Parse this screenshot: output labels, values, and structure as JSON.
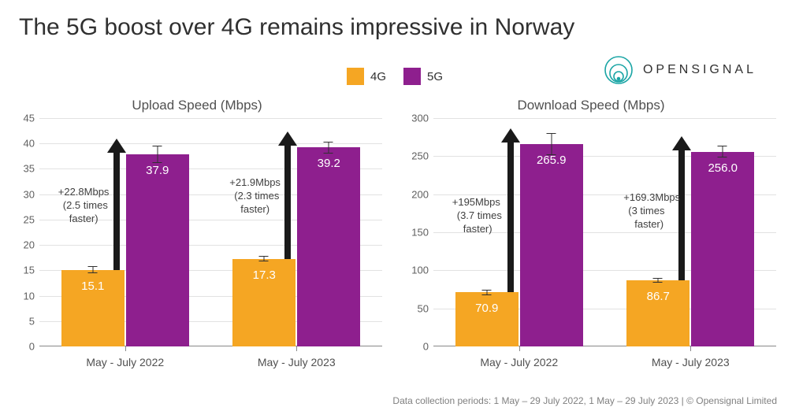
{
  "title": "The 5G boost over 4G remains impressive in Norway",
  "brand": "OPENSIGNAL",
  "footer": "Data collection periods: 1 May – 29 July 2022, 1 May – 29 July 2023 | © Opensignal Limited",
  "legend": {
    "items": [
      {
        "label": "4G",
        "color": "#f5a623"
      },
      {
        "label": "5G",
        "color": "#8e1f8e"
      }
    ]
  },
  "styling": {
    "background_color": "#ffffff",
    "grid_color": "#e2e2e2",
    "axis_color": "#888888",
    "tick_font_size": 13,
    "title_font_size": 30,
    "panel_title_font_size": 17,
    "bar_label_color": "#ffffff",
    "arrow_color": "#1a1a1a",
    "brand_icon_color": "#1aa5a5"
  },
  "charts": [
    {
      "type": "bar",
      "title": "Upload Speed (Mbps)",
      "ylim": [
        0,
        45
      ],
      "ytick_step": 5,
      "groups": [
        {
          "label": "May - July 2022",
          "bars": [
            {
              "series": "4G",
              "value": 15.1,
              "err": 0.7,
              "color": "#f5a623"
            },
            {
              "series": "5G",
              "value": 37.9,
              "err": 1.7,
              "color": "#8e1f8e"
            }
          ],
          "annotation": {
            "line1": "+22.8Mbps",
            "line2": "(2.5 times",
            "line3": "faster)"
          }
        },
        {
          "label": "May - July 2023",
          "bars": [
            {
              "series": "4G",
              "value": 17.3,
              "err": 0.6,
              "color": "#f5a623"
            },
            {
              "series": "5G",
              "value": 39.2,
              "err": 1.2,
              "color": "#8e1f8e"
            }
          ],
          "annotation": {
            "line1": "+21.9Mbps",
            "line2": "(2.3 times",
            "line3": "faster)"
          }
        }
      ]
    },
    {
      "type": "bar",
      "title": "Download Speed (Mbps)",
      "ylim": [
        0,
        300
      ],
      "ytick_step": 50,
      "groups": [
        {
          "label": "May - July 2022",
          "bars": [
            {
              "series": "4G",
              "value": 70.9,
              "err": 4,
              "color": "#f5a623"
            },
            {
              "series": "5G",
              "value": 265.9,
              "err": 14,
              "color": "#8e1f8e"
            }
          ],
          "annotation": {
            "line1": "+195Mbps",
            "line2": "(3.7 times",
            "line3": "faster)"
          }
        },
        {
          "label": "May - July 2023",
          "bars": [
            {
              "series": "4G",
              "value": 86.7,
              "err": 3,
              "color": "#f5a623"
            },
            {
              "series": "5G",
              "value": 256.0,
              "err": 8,
              "color": "#8e1f8e"
            }
          ],
          "annotation": {
            "line1": "+169.3Mbps",
            "line2": "(3 times",
            "line3": "faster)"
          }
        }
      ]
    }
  ]
}
